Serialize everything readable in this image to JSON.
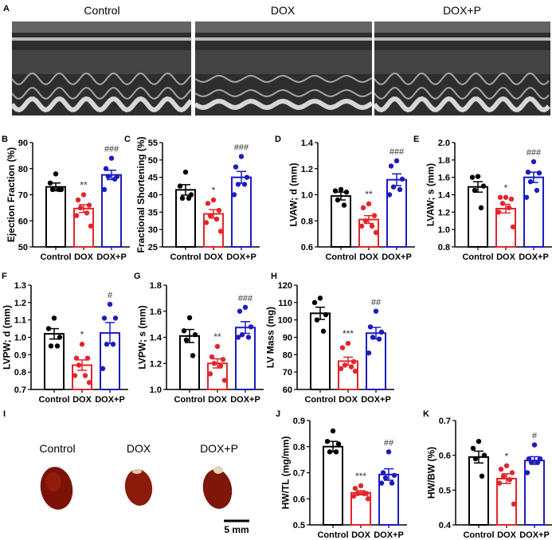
{
  "colors": {
    "Control": "#000000",
    "DOX": "#e3262b",
    "DOX+P": "#1c1cc0"
  },
  "echo": {
    "panel_label": "A",
    "titles": [
      "Control",
      "DOX",
      "DOX+P"
    ]
  },
  "hearts": {
    "panel_label": "I",
    "titles": [
      "Control",
      "DOX",
      "DOX+P"
    ],
    "scale_bar": "5 mm"
  },
  "chart_data": [
    {
      "panel": "B",
      "type": "bar",
      "ylabel": "Ejection Fraction (%)",
      "ylim": [
        50,
        90
      ],
      "ticks": [
        50,
        60,
        70,
        80,
        90
      ],
      "tick_labels": [
        "50",
        "60",
        "70",
        "80",
        "90"
      ],
      "categories": [
        "Control",
        "DOX",
        "DOX+P"
      ],
      "groups": [
        {
          "name": "Control",
          "mean": 73,
          "sem": 1.5,
          "points": [
            78,
            74.5,
            72,
            72,
            72
          ],
          "sig": ""
        },
        {
          "name": "DOX",
          "mean": 64.7,
          "sem": 1.5,
          "points": [
            70,
            68,
            66,
            65,
            63,
            62,
            58
          ],
          "sig": "**"
        },
        {
          "name": "DOX+P",
          "mean": 77.6,
          "sem": 1.8,
          "points": [
            84,
            80,
            77,
            77,
            76,
            72
          ],
          "sig": "###"
        }
      ]
    },
    {
      "panel": "C",
      "type": "bar",
      "ylabel": "Fractional Shortening (%)",
      "ylim": [
        25,
        55
      ],
      "ticks": [
        25,
        30,
        35,
        40,
        45,
        50,
        55
      ],
      "tick_labels": [
        "25",
        "30",
        "35",
        "40",
        "45",
        "50",
        "55"
      ],
      "categories": [
        "Control",
        "DOX",
        "DOX+P"
      ],
      "groups": [
        {
          "name": "Control",
          "mean": 41.4,
          "sem": 1.5,
          "points": [
            46.5,
            42.5,
            40,
            39,
            39
          ],
          "sig": ""
        },
        {
          "name": "DOX",
          "mean": 34.5,
          "sem": 1.2,
          "points": [
            38.5,
            37.5,
            35.5,
            34,
            33,
            32,
            29.5
          ],
          "sig": "*"
        },
        {
          "name": "DOX+P",
          "mean": 45,
          "sem": 1.7,
          "points": [
            51,
            48,
            45,
            43,
            43,
            40
          ],
          "sig": "###"
        }
      ]
    },
    {
      "panel": "D",
      "type": "bar",
      "ylabel": "LVAW; d (mm)",
      "ylim": [
        0.6,
        1.4
      ],
      "ticks": [
        0.6,
        0.8,
        1.0,
        1.2,
        1.4
      ],
      "tick_labels": [
        "0.6",
        "0.8",
        "1.0",
        "1.2",
        "1.4"
      ],
      "categories": [
        "Control",
        "DOX",
        "DOX+P"
      ],
      "groups": [
        {
          "name": "Control",
          "mean": 0.99,
          "sem": 0.03,
          "points": [
            1.04,
            1.03,
            1.02,
            0.96,
            0.92
          ],
          "sig": ""
        },
        {
          "name": "DOX",
          "mean": 0.81,
          "sem": 0.03,
          "points": [
            0.93,
            0.9,
            0.84,
            0.8,
            0.76,
            0.76,
            0.71
          ],
          "sig": "**"
        },
        {
          "name": "DOX+P",
          "mean": 1.115,
          "sem": 0.045,
          "points": [
            1.26,
            1.22,
            1.12,
            1.06,
            1.04,
            1.0
          ],
          "sig": "###"
        }
      ]
    },
    {
      "panel": "E",
      "type": "bar",
      "ylabel": "LVAW; s (mm)",
      "ylim": [
        0.8,
        2.0
      ],
      "ticks": [
        0.8,
        1.0,
        1.2,
        1.4,
        1.6,
        1.8,
        2.0
      ],
      "tick_labels": [
        "0.8",
        "1.0",
        "1.2",
        "1.4",
        "1.6",
        "1.8",
        "2.0"
      ],
      "categories": [
        "Control",
        "DOX",
        "DOX+P"
      ],
      "groups": [
        {
          "name": "Control",
          "mean": 1.49,
          "sem": 0.06,
          "points": [
            1.61,
            1.6,
            1.5,
            1.45,
            1.25
          ],
          "sig": ""
        },
        {
          "name": "DOX",
          "mean": 1.24,
          "sem": 0.05,
          "points": [
            1.37,
            1.37,
            1.35,
            1.3,
            1.25,
            1.2,
            1.03
          ],
          "sig": "*"
        },
        {
          "name": "DOX+P",
          "mean": 1.6,
          "sem": 0.06,
          "points": [
            1.78,
            1.66,
            1.65,
            1.55,
            1.45,
            1.37
          ],
          "sig": "###"
        }
      ]
    },
    {
      "panel": "F",
      "type": "bar",
      "ylabel": "LVPW; d (mm)",
      "ylim": [
        0.7,
        1.3
      ],
      "ticks": [
        0.7,
        0.8,
        0.9,
        1.0,
        1.1,
        1.2,
        1.3
      ],
      "tick_labels": [
        "0.7",
        "0.8",
        "0.9",
        "1.0",
        "1.1",
        "1.2",
        "1.3"
      ],
      "categories": [
        "Control",
        "DOX",
        "DOX+P"
      ],
      "groups": [
        {
          "name": "Control",
          "mean": 1.02,
          "sem": 0.03,
          "points": [
            1.11,
            1.05,
            1.0,
            0.95,
            0.95
          ],
          "sig": ""
        },
        {
          "name": "DOX",
          "mean": 0.84,
          "sem": 0.03,
          "points": [
            0.96,
            0.88,
            0.88,
            0.84,
            0.78,
            0.78,
            0.74
          ],
          "sig": "*"
        },
        {
          "name": "DOX+P",
          "mean": 1.025,
          "sem": 0.06,
          "points": [
            1.19,
            1.11,
            1.11,
            0.96,
            0.96,
            0.82
          ],
          "sig": "#"
        }
      ]
    },
    {
      "panel": "G",
      "type": "bar",
      "ylabel": "LVPW; s (mm)",
      "ylim": [
        1.0,
        1.8
      ],
      "ticks": [
        1.0,
        1.2,
        1.4,
        1.6,
        1.8
      ],
      "tick_labels": [
        "1.0",
        "1.2",
        "1.4",
        "1.6",
        "1.8"
      ],
      "categories": [
        "Control",
        "DOX",
        "DOX+P"
      ],
      "groups": [
        {
          "name": "Control",
          "mean": 1.41,
          "sem": 0.05,
          "points": [
            1.55,
            1.45,
            1.42,
            1.38,
            1.26
          ],
          "sig": ""
        },
        {
          "name": "DOX",
          "mean": 1.2,
          "sem": 0.035,
          "points": [
            1.33,
            1.25,
            1.23,
            1.2,
            1.18,
            1.12,
            1.07
          ],
          "sig": "**"
        },
        {
          "name": "DOX+P",
          "mean": 1.475,
          "sem": 0.045,
          "points": [
            1.63,
            1.6,
            1.48,
            1.42,
            1.4,
            1.4
          ],
          "sig": "###"
        }
      ]
    },
    {
      "panel": "H",
      "type": "bar",
      "ylabel": "LV Mass (mg)",
      "ylim": [
        60,
        120
      ],
      "ticks": [
        60,
        70,
        80,
        90,
        100,
        110,
        120
      ],
      "tick_labels": [
        "60",
        "70",
        "80",
        "90",
        "100",
        "110",
        "120"
      ],
      "categories": [
        "Control",
        "DOX",
        "DOX+P"
      ],
      "groups": [
        {
          "name": "Control",
          "mean": 103.8,
          "sem": 3.5,
          "points": [
            112.5,
            110,
            103,
            100,
            93.5
          ],
          "sig": ""
        },
        {
          "name": "DOX",
          "mean": 76.3,
          "sem": 2.3,
          "points": [
            86.5,
            84,
            76,
            74,
            73,
            72,
            70.5
          ],
          "sig": "***"
        },
        {
          "name": "DOX+P",
          "mean": 92.4,
          "sem": 3.3,
          "points": [
            105,
            96,
            93,
            90,
            89,
            81
          ],
          "sig": "##"
        }
      ]
    },
    {
      "panel": "J",
      "type": "bar",
      "ylabel": "HW/TL (mg/mm)",
      "ylim": [
        0.5,
        0.9
      ],
      "ticks": [
        0.5,
        0.6,
        0.7,
        0.8,
        0.9
      ],
      "tick_labels": [
        "0.5",
        "0.6",
        "0.7",
        "0.8",
        "0.9"
      ],
      "categories": [
        "Control",
        "DOX",
        "DOX+P"
      ],
      "groups": [
        {
          "name": "Control",
          "mean": 0.8,
          "sem": 0.02,
          "points": [
            0.86,
            0.82,
            0.81,
            0.78,
            0.78
          ],
          "sig": ""
        },
        {
          "name": "DOX",
          "mean": 0.623,
          "sem": 0.008,
          "points": [
            0.65,
            0.64,
            0.62,
            0.62,
            0.62,
            0.61,
            0.6
          ],
          "sig": "***"
        },
        {
          "name": "DOX+P",
          "mean": 0.693,
          "sem": 0.022,
          "points": [
            0.78,
            0.7,
            0.69,
            0.68,
            0.66,
            0.66
          ],
          "sig": "##"
        }
      ]
    },
    {
      "panel": "K",
      "type": "bar",
      "ylabel": "HW/BW (%)",
      "ylim": [
        0.4,
        0.7
      ],
      "ticks": [
        0.4,
        0.5,
        0.6,
        0.7
      ],
      "tick_labels": [
        "0.4",
        "0.5",
        "0.6",
        "0.7"
      ],
      "categories": [
        "Control",
        "DOX",
        "DOX+P"
      ],
      "groups": [
        {
          "name": "Control",
          "mean": 0.595,
          "sem": 0.017,
          "points": [
            0.64,
            0.62,
            0.6,
            0.59,
            0.54
          ],
          "sig": ""
        },
        {
          "name": "DOX",
          "mean": 0.533,
          "sem": 0.014,
          "points": [
            0.57,
            0.56,
            0.55,
            0.54,
            0.53,
            0.52,
            0.46
          ],
          "sig": "*"
        },
        {
          "name": "DOX+P",
          "mean": 0.585,
          "sem": 0.011,
          "points": [
            0.63,
            0.59,
            0.59,
            0.58,
            0.58,
            0.55
          ],
          "sig": "#"
        }
      ]
    }
  ]
}
